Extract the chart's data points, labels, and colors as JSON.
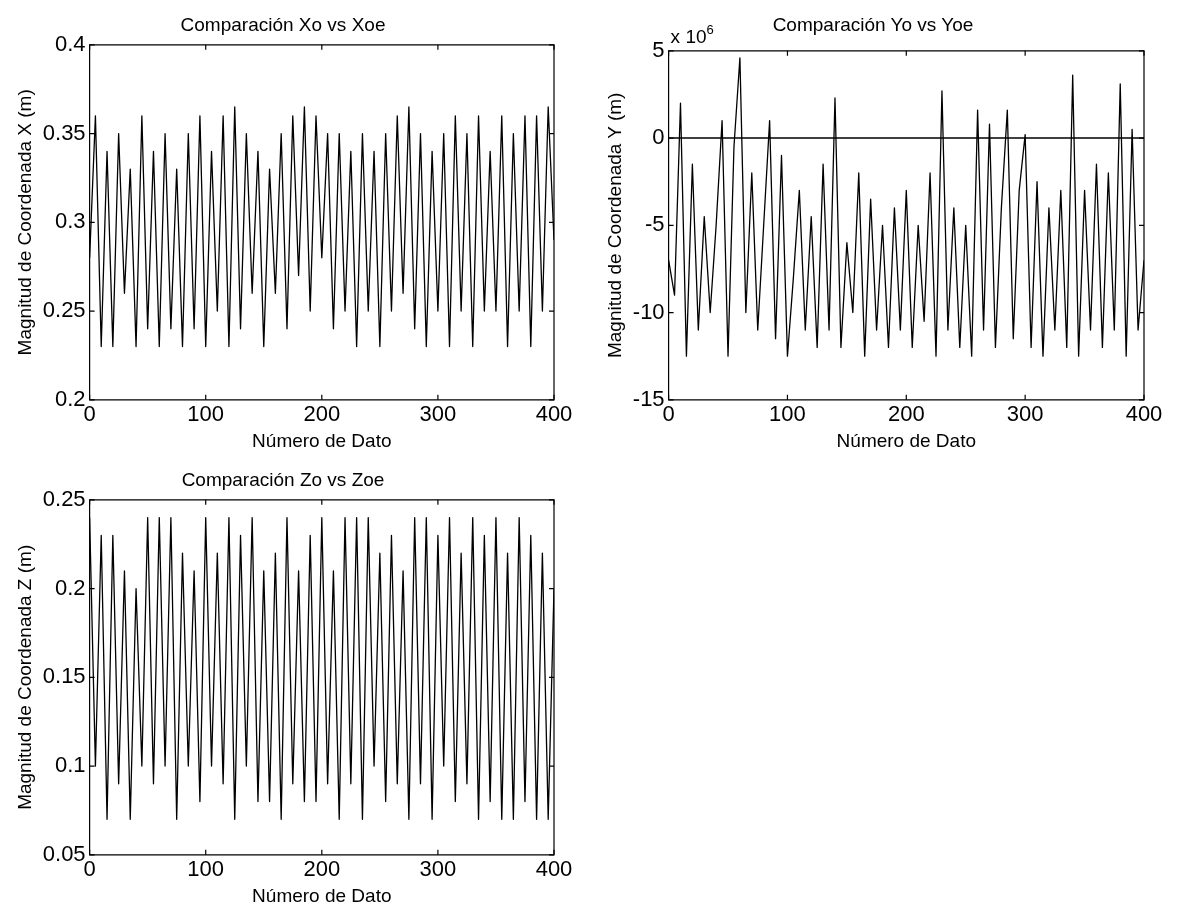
{
  "chart_data": [
    {
      "type": "line",
      "title": "Comparación Xo vs Xoe",
      "xlabel": "Número de Dato",
      "ylabel": "Magnitud de Coordenada X (m)",
      "xlim": [
        0,
        400
      ],
      "xticks": [
        0,
        100,
        200,
        300,
        400
      ],
      "ylim": [
        0.2,
        0.4
      ],
      "yticks": [
        0.2,
        0.25,
        0.3,
        0.35,
        0.4
      ],
      "grid": false,
      "legend": false,
      "marker": "none",
      "line_style": "solid",
      "x": [
        0,
        5,
        10,
        15,
        20,
        25,
        30,
        35,
        40,
        45,
        50,
        55,
        60,
        65,
        70,
        75,
        80,
        85,
        90,
        95,
        100,
        105,
        110,
        115,
        120,
        125,
        130,
        135,
        140,
        145,
        150,
        155,
        160,
        165,
        170,
        175,
        180,
        185,
        190,
        195,
        200,
        205,
        210,
        215,
        220,
        225,
        230,
        235,
        240,
        245,
        250,
        255,
        260,
        265,
        270,
        275,
        280,
        285,
        290,
        295,
        300,
        305,
        310,
        315,
        320,
        325,
        330,
        335,
        340,
        345,
        350,
        355,
        360,
        365,
        370,
        375,
        380,
        385,
        390,
        395,
        400
      ],
      "series": [
        {
          "color": "#000000",
          "values": [
            0.28,
            0.36,
            0.23,
            0.34,
            0.23,
            0.35,
            0.26,
            0.33,
            0.23,
            0.36,
            0.24,
            0.34,
            0.23,
            0.35,
            0.24,
            0.33,
            0.23,
            0.35,
            0.24,
            0.36,
            0.23,
            0.34,
            0.25,
            0.36,
            0.23,
            0.365,
            0.24,
            0.35,
            0.26,
            0.34,
            0.23,
            0.33,
            0.26,
            0.35,
            0.24,
            0.36,
            0.27,
            0.365,
            0.25,
            0.36,
            0.28,
            0.35,
            0.24,
            0.35,
            0.25,
            0.34,
            0.23,
            0.35,
            0.25,
            0.34,
            0.23,
            0.35,
            0.25,
            0.36,
            0.26,
            0.365,
            0.24,
            0.35,
            0.23,
            0.34,
            0.25,
            0.35,
            0.23,
            0.36,
            0.25,
            0.35,
            0.23,
            0.36,
            0.25,
            0.34,
            0.25,
            0.36,
            0.23,
            0.35,
            0.25,
            0.36,
            0.23,
            0.36,
            0.25,
            0.365,
            0.29
          ]
        }
      ]
    },
    {
      "type": "line",
      "title": "Comparación Yo vs Yoe",
      "xlabel": "Número de Dato",
      "ylabel": "Magnitud de Coordenada Y (m)",
      "annotations": [
        "x 10$^{6}$"
      ],
      "xlim": [
        0,
        400
      ],
      "xticks": [
        0,
        100,
        200,
        300,
        400
      ],
      "ylim": [
        -15,
        5
      ],
      "yticks": [
        -15,
        -10,
        -5,
        0,
        5
      ],
      "grid": false,
      "legend": false,
      "marker": "none",
      "line_style": "solid",
      "ref_lines": [
        {
          "axis": "y",
          "value": 0,
          "color": "#000000"
        }
      ],
      "x": [
        0,
        5,
        10,
        15,
        20,
        25,
        30,
        35,
        40,
        45,
        50,
        55,
        60,
        65,
        70,
        75,
        80,
        85,
        90,
        95,
        100,
        105,
        110,
        115,
        120,
        125,
        130,
        135,
        140,
        145,
        150,
        155,
        160,
        165,
        170,
        175,
        180,
        185,
        190,
        195,
        200,
        205,
        210,
        215,
        220,
        225,
        230,
        235,
        240,
        245,
        250,
        255,
        260,
        265,
        270,
        275,
        280,
        285,
        290,
        295,
        300,
        305,
        310,
        315,
        320,
        325,
        330,
        335,
        340,
        345,
        350,
        355,
        360,
        365,
        370,
        375,
        380,
        385,
        390,
        395,
        400
      ],
      "series": [
        {
          "color": "#000000",
          "values": [
            -7,
            -9,
            2,
            -12.5,
            -1.5,
            -11,
            -4.5,
            -10,
            -5,
            1,
            -12.5,
            -0.5,
            4.6,
            -10,
            -2,
            -11,
            -5,
            1,
            -11.5,
            -1,
            -12.5,
            -8,
            -3,
            -11,
            -4.5,
            -12,
            -1.5,
            -11,
            2.3,
            -12,
            -6,
            -10,
            -2,
            -12.5,
            -3.5,
            -11,
            -5,
            -12,
            -4,
            -11,
            -3,
            -12,
            -5,
            -10.5,
            -2,
            -12.5,
            2.7,
            -11,
            -4,
            -12,
            -5,
            -12.5,
            1.6,
            -11,
            0.8,
            -12,
            -4,
            1.6,
            -11.5,
            -3,
            0.2,
            -12,
            -2.5,
            -12.5,
            -4,
            -11,
            -3,
            -12,
            3.6,
            -12.5,
            -3,
            -11,
            -1.5,
            -12,
            -2,
            -11,
            3.1,
            -12.5,
            0.5,
            -11,
            -7
          ]
        }
      ]
    },
    {
      "type": "line",
      "title": "Comparación Zo vs Zoe",
      "xlabel": "Número de Dato",
      "ylabel": "Magnitud de Coordenada Z (m)",
      "xlim": [
        0,
        400
      ],
      "xticks": [
        0,
        100,
        200,
        300,
        400
      ],
      "ylim": [
        0.05,
        0.25
      ],
      "yticks": [
        0.05,
        0.1,
        0.15,
        0.2,
        0.25
      ],
      "grid": false,
      "legend": false,
      "marker": "none",
      "line_style": "solid",
      "x": [
        0,
        5,
        10,
        15,
        20,
        25,
        30,
        35,
        40,
        45,
        50,
        55,
        60,
        65,
        70,
        75,
        80,
        85,
        90,
        95,
        100,
        105,
        110,
        115,
        120,
        125,
        130,
        135,
        140,
        145,
        150,
        155,
        160,
        165,
        170,
        175,
        180,
        185,
        190,
        195,
        200,
        205,
        210,
        215,
        220,
        225,
        230,
        235,
        240,
        245,
        250,
        255,
        260,
        265,
        270,
        275,
        280,
        285,
        290,
        295,
        300,
        305,
        310,
        315,
        320,
        325,
        330,
        335,
        340,
        345,
        350,
        355,
        360,
        365,
        370,
        375,
        380,
        385,
        390,
        395,
        400
      ],
      "series": [
        {
          "color": "#000000",
          "values": [
            0.24,
            0.1,
            0.23,
            0.07,
            0.23,
            0.09,
            0.21,
            0.07,
            0.2,
            0.1,
            0.24,
            0.09,
            0.24,
            0.1,
            0.24,
            0.07,
            0.22,
            0.1,
            0.21,
            0.08,
            0.24,
            0.1,
            0.22,
            0.09,
            0.24,
            0.07,
            0.23,
            0.1,
            0.24,
            0.08,
            0.21,
            0.08,
            0.22,
            0.07,
            0.24,
            0.09,
            0.21,
            0.08,
            0.23,
            0.08,
            0.24,
            0.09,
            0.21,
            0.07,
            0.24,
            0.09,
            0.24,
            0.07,
            0.24,
            0.1,
            0.22,
            0.08,
            0.23,
            0.09,
            0.21,
            0.07,
            0.24,
            0.09,
            0.24,
            0.07,
            0.23,
            0.1,
            0.24,
            0.08,
            0.22,
            0.09,
            0.24,
            0.07,
            0.23,
            0.08,
            0.24,
            0.07,
            0.22,
            0.07,
            0.24,
            0.08,
            0.23,
            0.07,
            0.22,
            0.07,
            0.2
          ]
        }
      ]
    }
  ]
}
